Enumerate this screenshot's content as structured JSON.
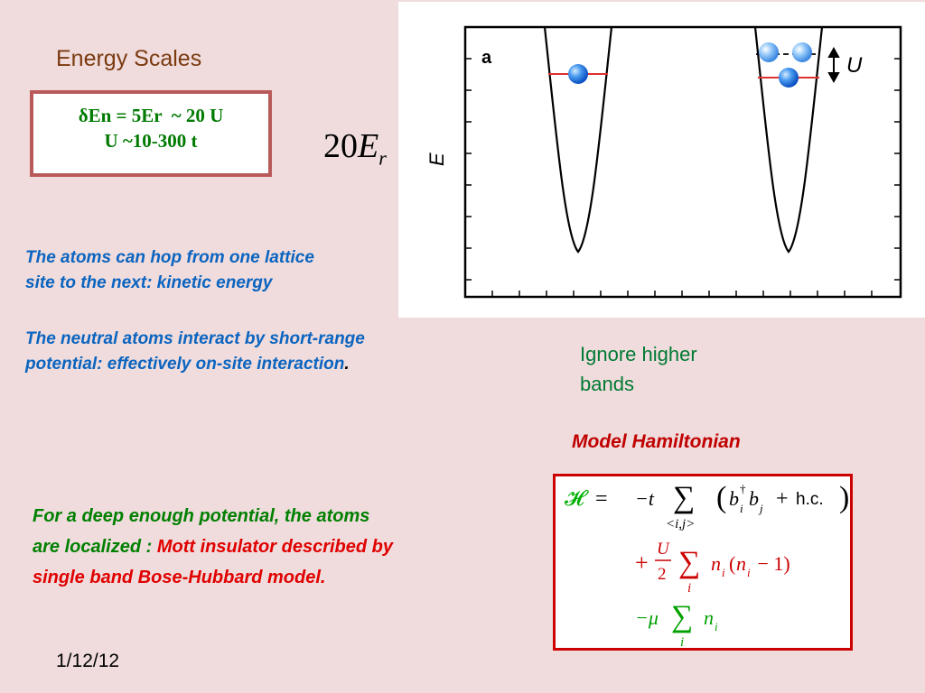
{
  "title": "Energy Scales",
  "energy_box": {
    "line1": "δEn = 5Er  ~ 20 U",
    "line2": "U ~10-300 t"
  },
  "hop_text": {
    "line1": "The atoms can hop from one lattice",
    "line2": "site to the next: kinetic energy"
  },
  "neutral_text": {
    "line1": "The neutral atoms interact by short-range",
    "line2": "potential:  effectively on-site interaction",
    "dot": "."
  },
  "er_label": {
    "coef": "20",
    "symbol": "E",
    "sub": "r"
  },
  "plot": {
    "panel_label": "a",
    "axis_label": "E",
    "u_label": "U"
  },
  "ignore_text": {
    "line1": "Ignore higher",
    "line2": "bands"
  },
  "model_label": "Model Hamiltonian",
  "hamiltonian": {
    "H": "𝓗",
    "eq": "=",
    "minus_t": "−t",
    "sum": "∑",
    "sum_sub_ij": "<i,j>",
    "b_term": "b",
    "dagger": "†",
    "sub_i": "i",
    "sub_j": "j",
    "plus": "+",
    "hc": "h.c.",
    "plus_frac_num": "U",
    "frac_den": "2",
    "n_term": "n",
    "open_paren": "(",
    "minus_one": " − 1)",
    "minus_mu": "−μ"
  },
  "deep_text": {
    "line1": "For a deep enough potential, the atoms",
    "line2_green": "are localized : ",
    "line2_red": "Mott insulator described by",
    "line3_red": "single band Bose-Hubbard  model."
  },
  "date": "1/12/12",
  "colors": {
    "background": "#f0dcdc",
    "title": "#7a3a10",
    "green": "#008000",
    "blue": "#0a64c0",
    "red": "#e00000",
    "arrow": "#8b3a10",
    "atom": "#1e78e8",
    "level": "#e03030"
  }
}
